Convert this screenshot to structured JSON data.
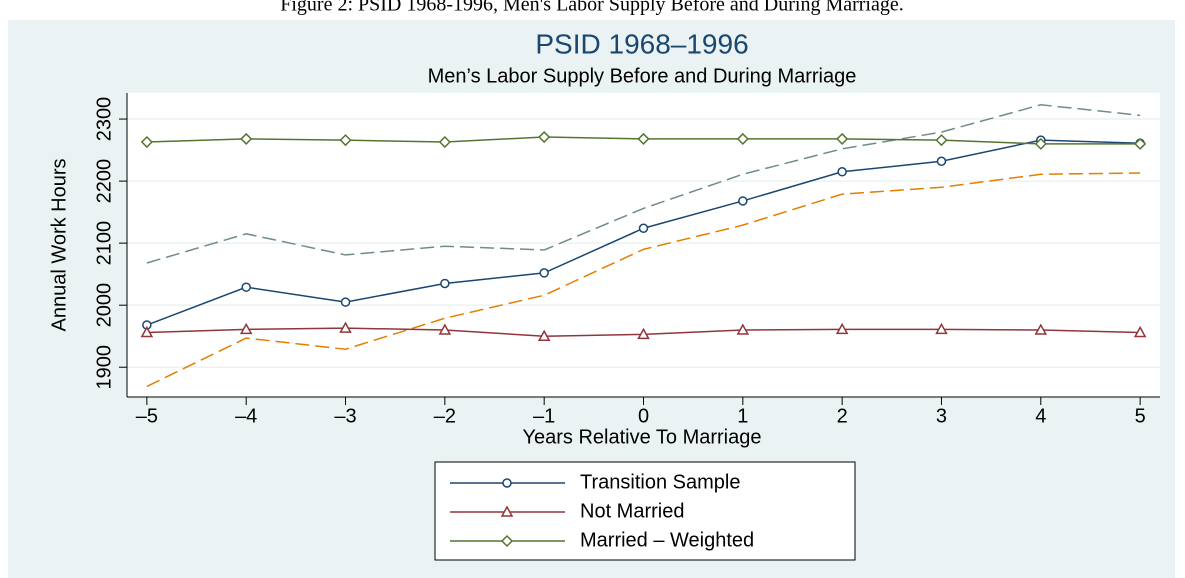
{
  "chart_data": {
    "type": "line",
    "caption": "Figure 2: PSID 1968-1996, Men's Labor Supply Before and During Marriage.",
    "title": "PSID 1968–1996",
    "subtitle": "Men’s Labor Supply Before and During Marriage",
    "x_label": "Years Relative To Marriage",
    "y_label": "Annual Work Hours",
    "x": [
      -5,
      -4,
      -3,
      -2,
      -1,
      0,
      1,
      2,
      3,
      4,
      5
    ],
    "xlim": [
      -5.2,
      5.2
    ],
    "xticks": [
      {
        "value": -5,
        "label": "–5"
      },
      {
        "value": -4,
        "label": "–4"
      },
      {
        "value": -3,
        "label": "–3"
      },
      {
        "value": -2,
        "label": "–2"
      },
      {
        "value": -1,
        "label": "–1"
      },
      0,
      1,
      2,
      3,
      4,
      5
    ],
    "ylim": [
      1852,
      2342
    ],
    "yticks": [
      1900,
      2000,
      2100,
      2200,
      2300
    ],
    "grid": true,
    "series": [
      {
        "color": "#6e8e84",
        "dash": true,
        "values": [
          2068,
          2115,
          2081,
          2095,
          2089,
          2156,
          2211,
          2252,
          2279,
          2323,
          2306
        ]
      },
      {
        "color": "#e37e00",
        "dash": true,
        "values": [
          1869,
          1947,
          1929,
          1979,
          2016,
          2090,
          2129,
          2179,
          2190,
          2211,
          2213
        ]
      },
      {
        "name": "Transition Sample",
        "color": "#1a476f",
        "marker": "circle",
        "values": [
          1968,
          2029,
          2005,
          2035,
          2052,
          2124,
          2168,
          2215,
          2232,
          2266,
          2261
        ]
      },
      {
        "name": "Not Married",
        "color": "#90353b",
        "marker": "triangle",
        "values": [
          1956,
          1961,
          1963,
          1960,
          1950,
          1953,
          1960,
          1961,
          1961,
          1960,
          1956
        ]
      },
      {
        "name": "Married – Weighted",
        "color": "#55752f",
        "marker": "diamond",
        "values": [
          2263,
          2268,
          2266,
          2263,
          2271,
          2268,
          2268,
          2268,
          2266,
          2260,
          2260
        ]
      }
    ]
  }
}
